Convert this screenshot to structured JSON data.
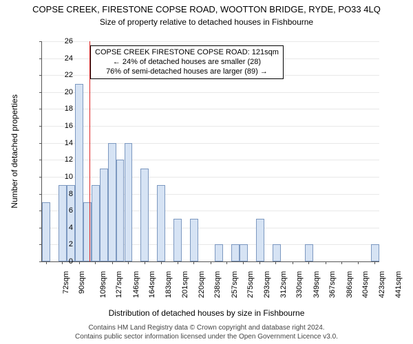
{
  "header": {
    "title": "COPSE CREEK, FIRESTONE COPSE ROAD, WOOTTON BRIDGE, RYDE, PO33 4LQ",
    "subtitle": "Size of property relative to detached houses in Fishbourne"
  },
  "axes": {
    "ylabel": "Number of detached properties",
    "xlabel": "Distribution of detached houses by size in Fishbourne",
    "ylim": [
      0,
      26
    ],
    "ytick_step": 2,
    "yticks": [
      0,
      2,
      4,
      6,
      8,
      10,
      12,
      14,
      16,
      18,
      20,
      22,
      24,
      26
    ]
  },
  "annotation": {
    "line1": "COPSE CREEK FIRESTONE COPSE ROAD: 121sqm",
    "line2": "← 24% of detached houses are smaller (28)",
    "line3": "76% of semi-detached houses are larger (89) →",
    "marker_x": "121"
  },
  "chart": {
    "type": "bar",
    "bar_fill": "#d6e3f4",
    "bar_stroke": "#7c98c0",
    "grid_color": "#e8e8e8",
    "marker_color": "#dd2222",
    "background": "#ffffff",
    "tick_fontsize": 11,
    "label_fontsize": 12,
    "title_fontsize": 13,
    "x_start": 72,
    "x_step": 9.25,
    "bars": [
      {
        "x": 72,
        "h": 7
      },
      {
        "x": 81,
        "h": 0
      },
      {
        "x": 90,
        "h": 9
      },
      {
        "x": 100,
        "h": 9
      },
      {
        "x": 109,
        "h": 21
      },
      {
        "x": 118,
        "h": 7
      },
      {
        "x": 127,
        "h": 9
      },
      {
        "x": 137,
        "h": 11
      },
      {
        "x": 146,
        "h": 14
      },
      {
        "x": 155,
        "h": 12
      },
      {
        "x": 164,
        "h": 14
      },
      {
        "x": 174,
        "h": 0
      },
      {
        "x": 183,
        "h": 11
      },
      {
        "x": 192,
        "h": 0
      },
      {
        "x": 201,
        "h": 9
      },
      {
        "x": 211,
        "h": 0
      },
      {
        "x": 220,
        "h": 5
      },
      {
        "x": 229,
        "h": 0
      },
      {
        "x": 238,
        "h": 5
      },
      {
        "x": 248,
        "h": 0
      },
      {
        "x": 257,
        "h": 0
      },
      {
        "x": 266,
        "h": 2
      },
      {
        "x": 275,
        "h": 0
      },
      {
        "x": 285,
        "h": 2
      },
      {
        "x": 293,
        "h": 2
      },
      {
        "x": 303,
        "h": 0
      },
      {
        "x": 312,
        "h": 5
      },
      {
        "x": 321,
        "h": 0
      },
      {
        "x": 330,
        "h": 2
      },
      {
        "x": 340,
        "h": 0
      },
      {
        "x": 349,
        "h": 0
      },
      {
        "x": 358,
        "h": 0
      },
      {
        "x": 367,
        "h": 2
      },
      {
        "x": 377,
        "h": 0
      },
      {
        "x": 386,
        "h": 0
      },
      {
        "x": 395,
        "h": 0
      },
      {
        "x": 404,
        "h": 0
      },
      {
        "x": 414,
        "h": 0
      },
      {
        "x": 423,
        "h": 0
      },
      {
        "x": 432,
        "h": 0
      },
      {
        "x": 441,
        "h": 2
      }
    ],
    "xticks": [
      72,
      90,
      109,
      127,
      146,
      164,
      183,
      201,
      220,
      238,
      257,
      275,
      293,
      312,
      330,
      349,
      367,
      386,
      404,
      423,
      441
    ]
  },
  "footer": {
    "line1": "Contains HM Land Registry data © Crown copyright and database right 2024.",
    "line2": "Contains public sector information licensed under the Open Government Licence v3.0."
  }
}
